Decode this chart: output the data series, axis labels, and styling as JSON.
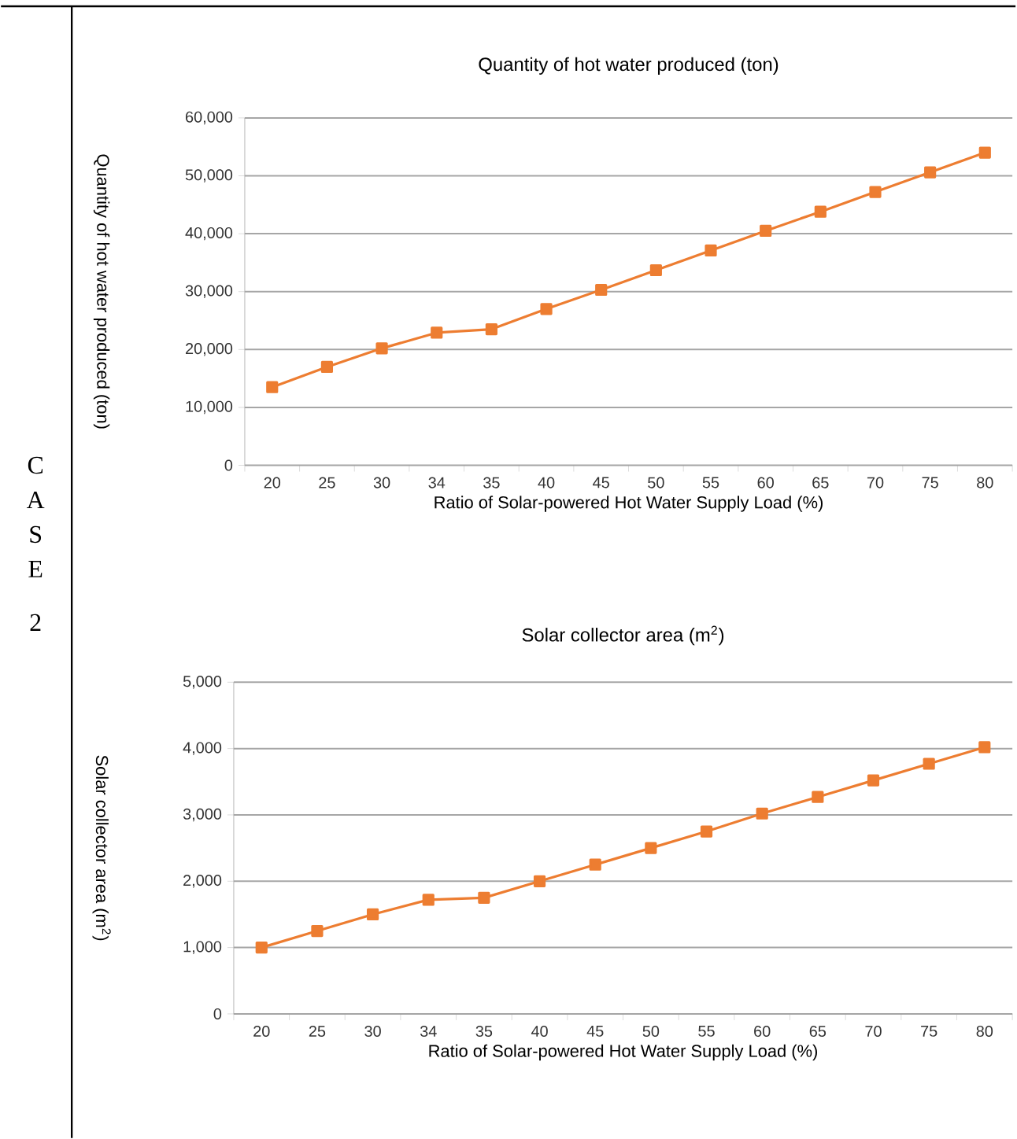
{
  "chart_data": [
    {
      "type": "line",
      "title": "Quantity of hot water produced (ton)",
      "xlabel": "Ratio of Solar-powered  Hot Water Supply Load  (%)",
      "ylabel": "Quantity of hot water produced (ton)",
      "annotations": [
        "C",
        "A",
        "S",
        "E",
        "2"
      ],
      "categories": [
        "20",
        "25",
        "30",
        "34",
        "35",
        "40",
        "45",
        "50",
        "55",
        "60",
        "65",
        "70",
        "75",
        "80"
      ],
      "series": [
        {
          "color": "#ed7d31",
          "values": [
            13500,
            17000,
            20200,
            22900,
            23500,
            27000,
            30300,
            33700,
            37100,
            40500,
            43800,
            47200,
            50600,
            54000
          ]
        }
      ],
      "ylim": [
        0,
        60000
      ],
      "yticks": [
        0,
        {
          "value": 10000,
          "label": "10,000"
        },
        {
          "value": 20000,
          "label": "20,000"
        },
        {
          "value": 30000,
          "label": "30,000"
        },
        {
          "value": 40000,
          "label": "40,000"
        },
        {
          "value": 50000,
          "label": "50,000"
        },
        {
          "value": 60000,
          "label": "60,000"
        }
      ],
      "grid": "y",
      "marker": "square",
      "line_style": "solid"
    },
    {
      "type": "line",
      "title": "Solar collector area (m$^{2}$)",
      "xlabel": "Ratio of Solar-powered  Hot Water Supply Load  (%)",
      "ylabel": "Solar collector area  (m$^{2}$)",
      "categories": [
        "20",
        "25",
        "30",
        "34",
        "35",
        "40",
        "45",
        "50",
        "55",
        "60",
        "65",
        "70",
        "75",
        "80"
      ],
      "series": [
        {
          "color": "#ed7d31",
          "values": [
            1000,
            1250,
            1500,
            1720,
            1750,
            2000,
            2250,
            2500,
            2750,
            3020,
            3270,
            3520,
            3770,
            4020
          ]
        }
      ],
      "ylim": [
        0,
        5000
      ],
      "yticks": [
        0,
        {
          "value": 1000,
          "label": "1,000"
        },
        {
          "value": 2000,
          "label": "2,000"
        },
        {
          "value": 3000,
          "label": "3,000"
        },
        {
          "value": 4000,
          "label": "4,000"
        },
        {
          "value": 5000,
          "label": "5,000"
        }
      ],
      "grid": "y",
      "marker": "square",
      "line_style": "solid"
    }
  ]
}
